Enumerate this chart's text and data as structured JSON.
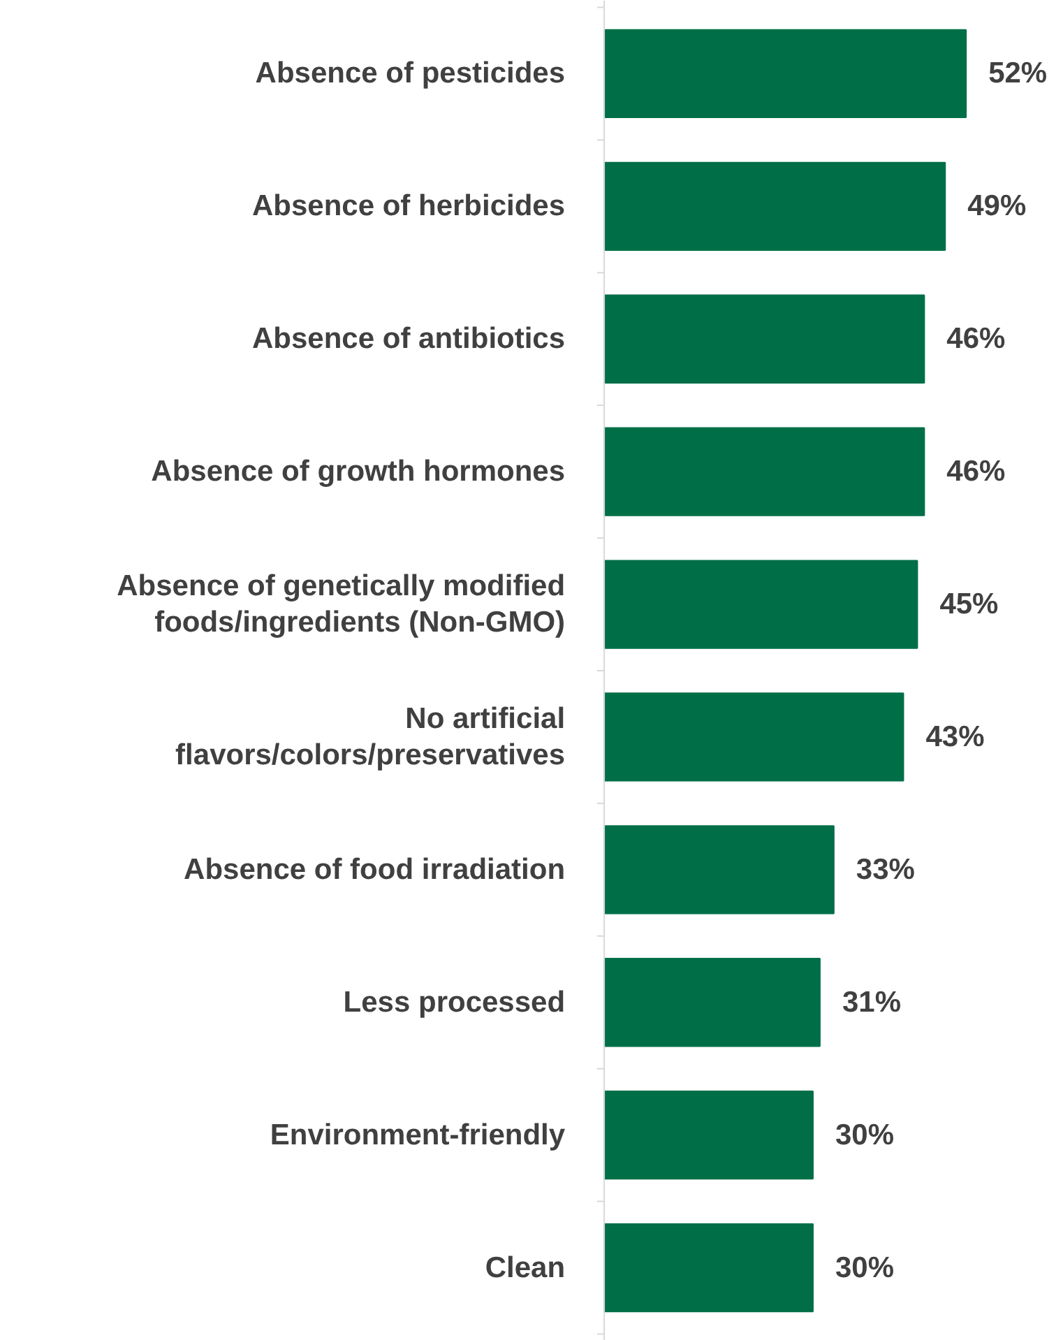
{
  "chart_data": {
    "type": "bar",
    "orientation": "horizontal",
    "color": "#006f48",
    "categories": [
      "Absence of pesticides",
      "Absence of herbicides",
      "Absence of antibiotics",
      "Absence of growth hormones",
      "Absence of genetically modified foods/ingredients (Non-GMO)",
      "No artificial flavors/colors/preservatives",
      "Absence of food irradiation",
      "Less processed",
      "Environment-friendly",
      "Clean"
    ],
    "values": [
      52,
      49,
      46,
      46,
      45,
      43,
      33,
      31,
      30,
      30
    ],
    "value_labels": [
      "52%",
      "49%",
      "46%",
      "46%",
      "45%",
      "43%",
      "33%",
      "31%",
      "30%",
      "30%"
    ]
  }
}
